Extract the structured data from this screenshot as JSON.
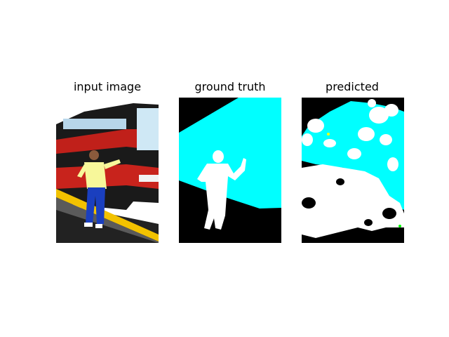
{
  "figure": {
    "panels": [
      {
        "title": "input image"
      },
      {
        "title": "ground truth"
      },
      {
        "title": "predicted"
      }
    ]
  },
  "colors": {
    "background": "#000000",
    "person": "#ffffff",
    "bus": "#00ffff",
    "noise_yellow": "#ffff00",
    "noise_green": "#00ff00"
  }
}
